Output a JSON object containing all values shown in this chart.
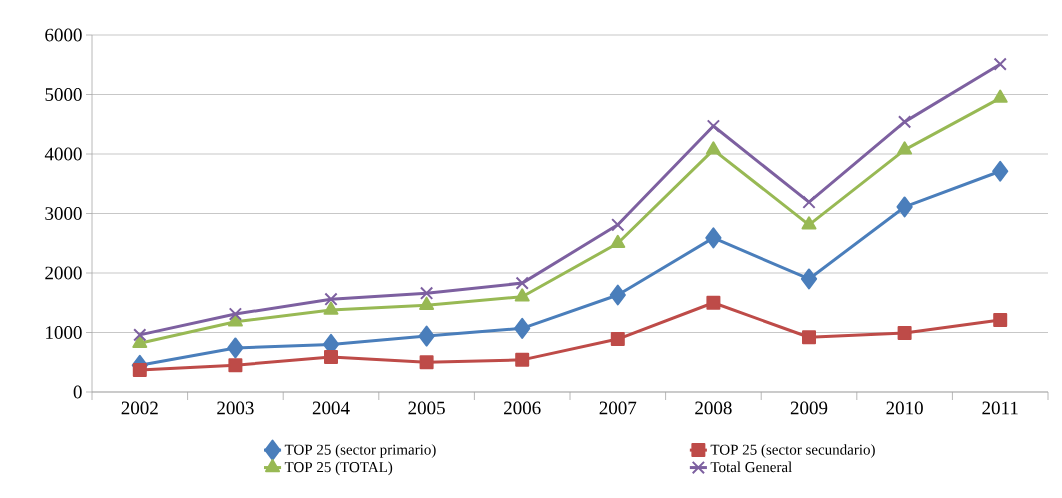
{
  "chart_data": {
    "type": "line",
    "categories": [
      "2002",
      "2003",
      "2004",
      "2005",
      "2006",
      "2007",
      "2008",
      "2009",
      "2010",
      "2011"
    ],
    "series": [
      {
        "name": "TOP 25 (sector primario)",
        "color": "#4a7ebb",
        "marker": "diamond",
        "values": [
          450,
          740,
          800,
          940,
          1070,
          1630,
          2590,
          1900,
          3110,
          3710
        ]
      },
      {
        "name": "TOP 25 (sector secundario)",
        "color": "#be4b48",
        "marker": "square",
        "values": [
          370,
          450,
          590,
          500,
          540,
          890,
          1500,
          920,
          990,
          1210
        ]
      },
      {
        "name": "TOP 25 (TOTAL)",
        "color": "#98b954",
        "marker": "triangle",
        "values": [
          820,
          1180,
          1380,
          1460,
          1600,
          2500,
          4070,
          2810,
          4070,
          4940
        ]
      },
      {
        "name": "Total General",
        "color": "#7d60a0",
        "marker": "cross",
        "values": [
          960,
          1310,
          1560,
          1660,
          1830,
          2810,
          4470,
          3190,
          4540,
          5510
        ]
      }
    ],
    "ylim": [
      0,
      6000
    ],
    "yticks": [
      0,
      1000,
      2000,
      3000,
      4000,
      5000,
      6000
    ],
    "grid": "y",
    "legend": "bottom",
    "line_style": "solid"
  }
}
